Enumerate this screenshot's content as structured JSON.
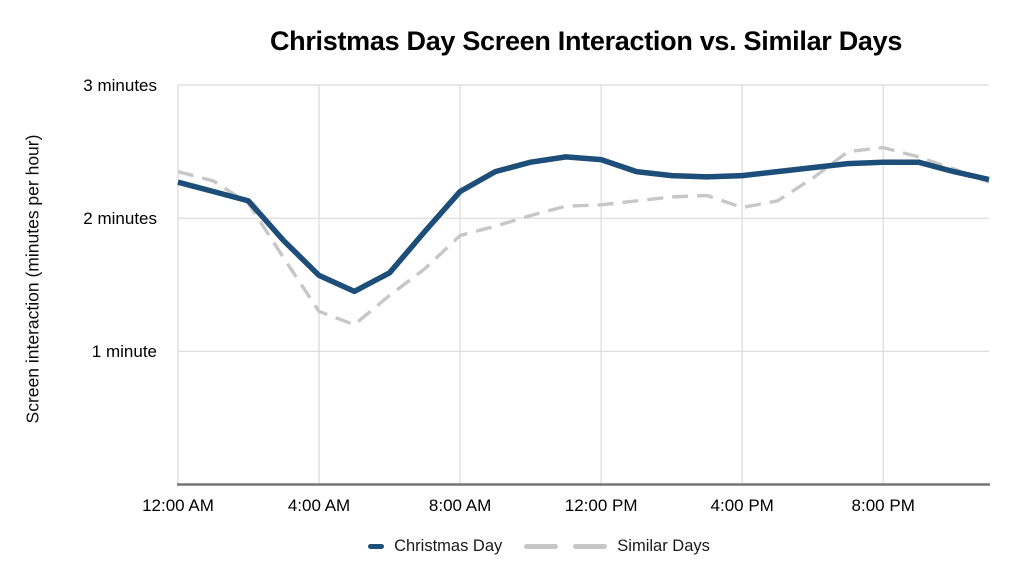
{
  "chart_data": {
    "type": "line",
    "title": "Christmas Day Screen Interaction vs. Similar Days",
    "xlabel": "",
    "ylabel": "Screen interaction (minutes per hour)",
    "xlim": [
      0,
      23
    ],
    "ylim": [
      0,
      3
    ],
    "grid": true,
    "legend_position": "bottom",
    "x_unit": "hour of day",
    "x": [
      0,
      1,
      2,
      3,
      4,
      5,
      6,
      7,
      8,
      9,
      10,
      11,
      12,
      13,
      14,
      15,
      16,
      17,
      18,
      19,
      20,
      21,
      22,
      23
    ],
    "x_ticks": {
      "hours": [
        0,
        4,
        8,
        12,
        16,
        20
      ],
      "labels": [
        "12:00 AM",
        "4:00 AM",
        "8:00 AM",
        "12:00 PM",
        "4:00 PM",
        "8:00 PM"
      ]
    },
    "y_ticks": {
      "values": [
        1,
        2,
        3
      ],
      "labels": [
        "1 minute",
        "2 minutes",
        "3 minutes"
      ]
    },
    "colors": {
      "grid": "#d9d9d9",
      "axis": "#757575",
      "title_text": "#000000",
      "tick_text": "#000000"
    },
    "series": [
      {
        "name": "Christmas Day",
        "color": "#1d4e79",
        "line_style": "solid",
        "values": [
          2.27,
          2.2,
          2.13,
          1.83,
          1.57,
          1.45,
          1.59,
          1.9,
          2.2,
          2.35,
          2.42,
          2.46,
          2.44,
          2.35,
          2.32,
          2.31,
          2.32,
          2.35,
          2.38,
          2.41,
          2.42,
          2.42,
          2.35,
          2.29
        ]
      },
      {
        "name": "Similar Days",
        "color": "#c7c7c7",
        "line_style": "dashed",
        "values": [
          2.35,
          2.28,
          2.11,
          1.7,
          1.3,
          1.2,
          1.42,
          1.62,
          1.87,
          1.94,
          2.02,
          2.09,
          2.1,
          2.13,
          2.16,
          2.17,
          2.08,
          2.13,
          2.3,
          2.5,
          2.53,
          2.46,
          2.37,
          2.27
        ]
      }
    ]
  }
}
